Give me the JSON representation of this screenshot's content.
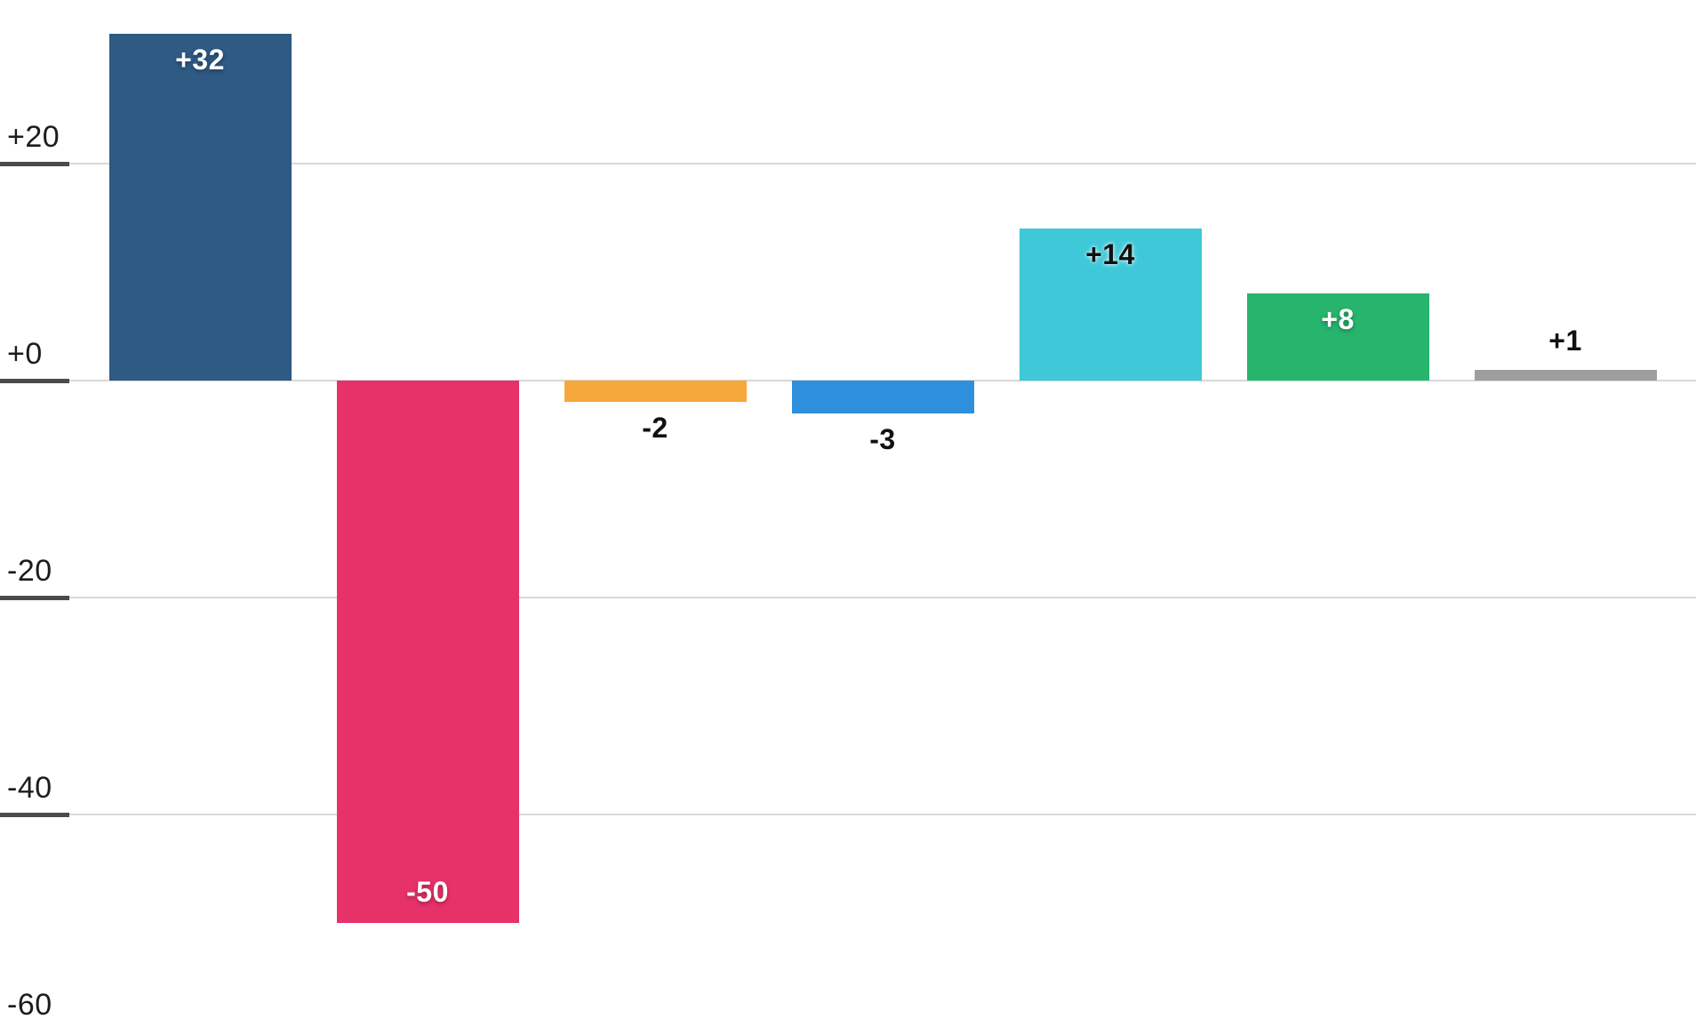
{
  "chart_data": {
    "type": "bar",
    "title": "",
    "xlabel": "",
    "ylabel": "",
    "series": [
      {
        "label": "+32",
        "value": 32,
        "color": "#2e5a84",
        "label_color": "#ffffff",
        "label_position": "inside-top"
      },
      {
        "label": "-50",
        "value": -50,
        "color": "#e73269",
        "label_color": "#ffffff",
        "label_position": "inside-bottom"
      },
      {
        "label": "-2",
        "value": -2,
        "color": "#f6a83b",
        "label_color": "#111111",
        "label_position": "outside-bottom"
      },
      {
        "label": "-3",
        "value": -3,
        "color": "#2e8fdd",
        "label_color": "#111111",
        "label_position": "outside-bottom"
      },
      {
        "label": "+14",
        "value": 14,
        "color": "#3ec8d8",
        "label_color": "#111111",
        "label_position": "inside-top"
      },
      {
        "label": "+8",
        "value": 8,
        "color": "#27b56e",
        "label_color": "#ffffff",
        "label_position": "inside-top"
      },
      {
        "label": "+1",
        "value": 1,
        "color": "#9e9ea0",
        "label_color": "#111111",
        "label_position": "outside-top"
      }
    ],
    "y_axis": {
      "ticks": [
        {
          "label": "+20",
          "value": 20
        },
        {
          "label": "+0",
          "value": 0
        },
        {
          "label": "-20",
          "value": -20
        },
        {
          "label": "-40",
          "value": -40
        },
        {
          "label": "-60",
          "value": -60
        }
      ],
      "range": [
        -62,
        33
      ],
      "grid": true
    },
    "layout": {
      "legend": "none",
      "x_tick_labels": "none"
    },
    "colors": {
      "background": "#ffffff",
      "gridline": "#d8d8d8",
      "tick": "#4b4b4b",
      "axis_label": "#1c1c1c"
    }
  }
}
